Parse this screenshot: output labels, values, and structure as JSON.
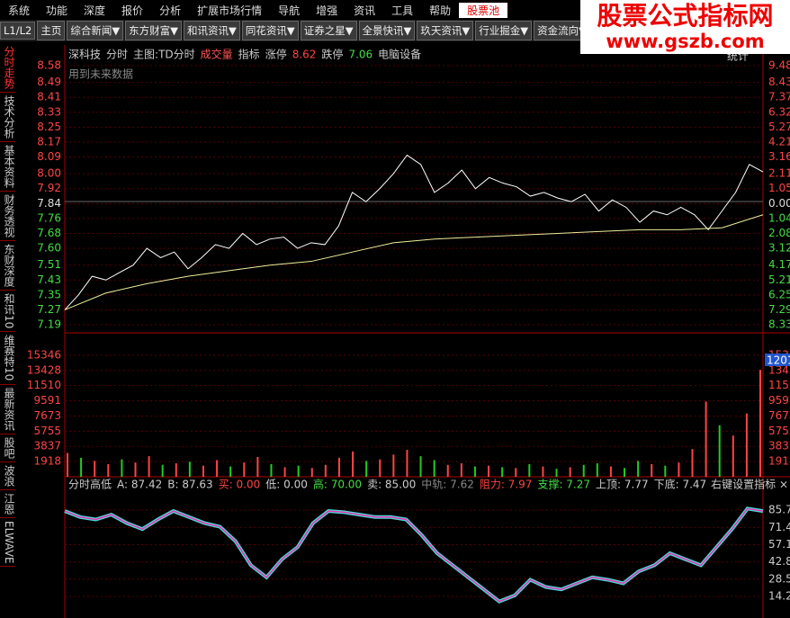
{
  "menu": [
    "系统",
    "功能",
    "深度",
    "报价",
    "分析",
    "扩展市场行情",
    "导航",
    "增强",
    "资讯",
    "工具",
    "帮助",
    "股票池"
  ],
  "tabs": [
    "L1/L2",
    "主页",
    "综合新闻▼",
    "东方财富▼",
    "和讯资讯▼",
    "同花资讯▼",
    "证券之星▼",
    "全景快讯▼",
    "玖天资讯▼",
    "行业掘金▼",
    "资金流向▼"
  ],
  "sidebar": [
    "分时走势",
    "技术分析",
    "基本资料",
    "财务透视",
    "东财深度",
    "和讯10",
    "维赛特10",
    "最新资讯",
    "股吧",
    "波浪",
    "江恩",
    "ELWAVE"
  ],
  "watermark": {
    "title": "股票公式指标网",
    "url": "www.gszb.com"
  },
  "header": {
    "stock": "深科技",
    "mode": "分时",
    "main": "主图:TD分时",
    "volume": "成交量",
    "indicator": "指标",
    "limit_up_label": "涨停",
    "limit_up": "8.62",
    "limit_down_label": "跌停",
    "limit_down": "7.06",
    "sector": "电脑设备",
    "note": "用到未来数据",
    "stats": "统计"
  },
  "price_axis": {
    "ylim": [
      7.19,
      8.58
    ],
    "ticks": [
      8.58,
      8.49,
      8.41,
      8.33,
      8.25,
      8.17,
      8.09,
      {
        "value": 8,
        "label": "8.00"
      },
      7.92,
      7.84,
      7.76,
      7.68,
      {
        "value": 7.6,
        "label": "7.60"
      },
      7.51,
      7.43,
      7.35,
      7.27,
      7.19
    ],
    "reference": 7.84
  },
  "pct_labels": [
    "9.48%",
    "8.43%",
    "7.37%",
    "6.32%",
    "5.27%",
    "4.21%",
    "3.16%",
    "2.11%",
    "1.05%",
    "0.00%",
    "1.04%",
    "2.08%",
    "3.12%",
    "4.17%",
    "5.21%",
    "6.25%",
    "7.29%",
    "8.33%"
  ],
  "price": [
    7.27,
    7.35,
    7.45,
    7.43,
    7.47,
    7.51,
    7.6,
    7.55,
    7.58,
    7.49,
    7.55,
    7.62,
    7.6,
    7.68,
    7.62,
    7.65,
    7.66,
    7.6,
    7.63,
    7.62,
    7.72,
    7.9,
    7.85,
    7.92,
    8.0,
    8.1,
    8.05,
    7.9,
    7.95,
    8.02,
    7.92,
    7.98,
    7.95,
    7.93,
    7.88,
    7.9,
    7.87,
    7.85,
    7.89,
    7.8,
    7.86,
    7.82,
    7.74,
    7.8,
    7.78,
    7.82,
    7.78,
    7.7,
    7.8,
    7.9,
    8.05,
    8.01
  ],
  "avg_price": [
    7.27,
    7.36,
    7.41,
    7.45,
    7.48,
    7.51,
    7.53,
    7.58,
    7.63,
    7.65,
    7.66,
    7.67,
    7.68,
    7.69,
    7.7,
    7.7,
    7.71,
    7.78
  ],
  "volume_axis": {
    "ylim": [
      0,
      17264
    ],
    "ticks": [
      15346,
      13428,
      11510,
      9591,
      7673,
      5755,
      3837,
      1918
    ]
  },
  "volume": [
    {
      "v": 3000,
      "up": true
    },
    {
      "v": 2400,
      "up": false
    },
    {
      "v": 2000,
      "up": true
    },
    {
      "v": 1600,
      "up": true
    },
    {
      "v": 2200,
      "up": false
    },
    {
      "v": 1800,
      "up": true
    },
    {
      "v": 2600,
      "up": true
    },
    {
      "v": 1500,
      "up": false
    },
    {
      "v": 1700,
      "up": true
    },
    {
      "v": 1900,
      "up": false
    },
    {
      "v": 1400,
      "up": true
    },
    {
      "v": 2100,
      "up": true
    },
    {
      "v": 1300,
      "up": false
    },
    {
      "v": 1800,
      "up": true
    },
    {
      "v": 2500,
      "up": true
    },
    {
      "v": 1600,
      "up": false
    },
    {
      "v": 1200,
      "up": true
    },
    {
      "v": 1400,
      "up": false
    },
    {
      "v": 1100,
      "up": true
    },
    {
      "v": 1500,
      "up": true
    },
    {
      "v": 2400,
      "up": true
    },
    {
      "v": 3200,
      "up": true
    },
    {
      "v": 2000,
      "up": false
    },
    {
      "v": 2200,
      "up": true
    },
    {
      "v": 2800,
      "up": true
    },
    {
      "v": 3400,
      "up": true
    },
    {
      "v": 2600,
      "up": false
    },
    {
      "v": 2100,
      "up": false
    },
    {
      "v": 1500,
      "up": true
    },
    {
      "v": 1700,
      "up": true
    },
    {
      "v": 1300,
      "up": false
    },
    {
      "v": 1400,
      "up": true
    },
    {
      "v": 1200,
      "up": false
    },
    {
      "v": 1100,
      "up": true
    },
    {
      "v": 1600,
      "up": false
    },
    {
      "v": 1300,
      "up": true
    },
    {
      "v": 1000,
      "up": false
    },
    {
      "v": 1200,
      "up": true
    },
    {
      "v": 1500,
      "up": false
    },
    {
      "v": 1700,
      "up": false
    },
    {
      "v": 1300,
      "up": true
    },
    {
      "v": 1100,
      "up": false
    },
    {
      "v": 2000,
      "up": false
    },
    {
      "v": 1600,
      "up": true
    },
    {
      "v": 1400,
      "up": false
    },
    {
      "v": 1800,
      "up": true
    },
    {
      "v": 3500,
      "up": true
    },
    {
      "v": 9500,
      "up": true
    },
    {
      "v": 6500,
      "up": false
    },
    {
      "v": 5200,
      "up": true
    },
    {
      "v": 8000,
      "up": true
    },
    {
      "v": 13500,
      "up": true
    }
  ],
  "volume_badge": "1201",
  "indicator": {
    "header": [
      "分时高低",
      "A: 87.42",
      "B: 87.63",
      "买: 0.00",
      "低: 0.00",
      "高: 70.00",
      "卖: 85.00",
      "中轨: 7.62",
      "阻力: 7.97",
      "支撑: 7.27",
      "上顶: 7.77",
      "下底: 7.47"
    ],
    "setting": "右键设置指标 ×",
    "ylim": [
      0,
      100
    ],
    "ticks": [
      85.7,
      71.4,
      57.1,
      42.8,
      28.5,
      14.2
    ],
    "values": [
      85,
      80,
      78,
      82,
      75,
      70,
      78,
      85,
      80,
      75,
      72,
      60,
      40,
      30,
      45,
      55,
      75,
      85,
      84,
      82,
      80,
      80,
      78,
      65,
      50,
      40,
      30,
      20,
      10,
      15,
      28,
      22,
      20,
      25,
      30,
      28,
      25,
      35,
      40,
      50,
      45,
      40,
      55,
      70,
      87,
      85
    ]
  }
}
